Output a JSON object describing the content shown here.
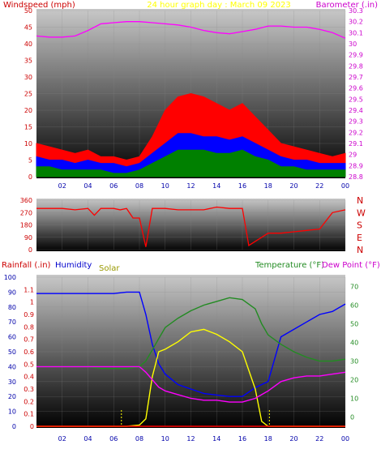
{
  "title": "24 hour graph day : March 09 2023",
  "colors": {
    "wind_speed": "#ff0000",
    "wind_gust": "#ff0000",
    "wind_avg": "#0000ff",
    "wind_low": "#008000",
    "barometer": "#ff00ff",
    "direction": "#ff0000",
    "humidity": "#0000ff",
    "solar": "#ffff00",
    "temperature": "#228b22",
    "dewpoint": "#ff00ff",
    "rain": "#ff0000",
    "title": "#ffff00",
    "axis_left": "#cc0000",
    "axis_right": "#cc00cc"
  },
  "x_ticks": [
    "02",
    "04",
    "06",
    "08",
    "10",
    "12",
    "14",
    "16",
    "18",
    "20",
    "22",
    "00"
  ],
  "chart_data": [
    {
      "type": "area",
      "name": "wind-barometer",
      "left_label": "Windspeed (mph)",
      "right_label": "Barometer (.in)",
      "y_left_ticks": [
        "0",
        "5",
        "10",
        "15",
        "20",
        "25",
        "30",
        "35",
        "40",
        "45",
        "50"
      ],
      "y_right_ticks": [
        "28.8",
        "28.9",
        "29",
        "29.1",
        "29.2",
        "29.3",
        "29.4",
        "29.5",
        "29.6",
        "29.7",
        "29.8",
        "29.9",
        "30",
        "30.1",
        "30.2",
        "30.3"
      ],
      "ylim_left": [
        0,
        50
      ],
      "ylim_right": [
        28.8,
        30.3
      ],
      "x_hours": [
        0,
        1,
        2,
        3,
        4,
        5,
        6,
        7,
        8,
        9,
        10,
        11,
        12,
        13,
        14,
        15,
        16,
        17,
        18,
        19,
        20,
        21,
        22,
        23,
        24
      ],
      "series": [
        {
          "key": "gust",
          "values": [
            10,
            9,
            8,
            7,
            8,
            6,
            6,
            5,
            6,
            12,
            20,
            24,
            25,
            24,
            22,
            20,
            22,
            18,
            14,
            10,
            9,
            8,
            7,
            6,
            7
          ]
        },
        {
          "key": "avg",
          "values": [
            6,
            5,
            5,
            4,
            5,
            4,
            4,
            3,
            4,
            7,
            10,
            13,
            13,
            12,
            12,
            11,
            12,
            10,
            8,
            6,
            5,
            5,
            4,
            4,
            4
          ]
        },
        {
          "key": "low",
          "values": [
            3,
            3,
            2,
            2,
            2,
            2,
            1,
            1,
            2,
            4,
            6,
            8,
            8,
            8,
            7,
            7,
            8,
            6,
            5,
            3,
            3,
            2,
            2,
            2,
            2
          ]
        },
        {
          "key": "barometer",
          "values": [
            30.07,
            30.06,
            30.06,
            30.07,
            30.12,
            30.18,
            30.19,
            30.2,
            30.2,
            30.19,
            30.18,
            30.17,
            30.15,
            30.12,
            30.1,
            30.09,
            30.11,
            30.13,
            30.16,
            30.16,
            30.15,
            30.15,
            30.13,
            30.1,
            30.05
          ]
        }
      ]
    },
    {
      "type": "line",
      "name": "wind-direction",
      "y_left_ticks": [
        "0",
        "90",
        "180",
        "270",
        "360"
      ],
      "y_right_ticks": [
        "N",
        "E",
        "S",
        "W",
        "N"
      ],
      "ylim": [
        0,
        360
      ],
      "x_hours": [
        0,
        2,
        3,
        4,
        4.5,
        5,
        6,
        6.5,
        7,
        7.5,
        8,
        8.5,
        9,
        10,
        11,
        12,
        13,
        14,
        15,
        16,
        16.5,
        18,
        19,
        20,
        21,
        22,
        23,
        24
      ],
      "values": [
        300,
        300,
        290,
        300,
        250,
        300,
        300,
        290,
        300,
        230,
        230,
        20,
        300,
        300,
        290,
        290,
        290,
        310,
        300,
        300,
        30,
        120,
        120,
        130,
        140,
        150,
        270,
        290
      ]
    },
    {
      "type": "line",
      "name": "weather",
      "left_label": "Rainfall (.in)",
      "humidity_label": "Humidity",
      "solar_label": "Solar",
      "right_label_temp": "Temperature (°F)",
      "right_label_dew": "Dew Point (°F)",
      "rain_ticks": [
        "0",
        "0.1",
        "0.2",
        "0.3",
        "0.4",
        "0.5",
        "0.6",
        "0.7",
        "0.8",
        "0.9",
        "1",
        "1.1"
      ],
      "humidity_ticks": [
        "0",
        "10",
        "20",
        "30",
        "40",
        "50",
        "60",
        "70",
        "80",
        "90",
        "100"
      ],
      "temp_ticks": [
        "0",
        "10",
        "20",
        "30",
        "40",
        "50",
        "60",
        "70"
      ],
      "rain_ylim": [
        0,
        1.2
      ],
      "humidity_ylim": [
        0,
        100
      ],
      "temp_ylim": [
        -5,
        75
      ],
      "x_hours": [
        0,
        1,
        2,
        3,
        4,
        5,
        6,
        7,
        8,
        8.5,
        9,
        9.5,
        10,
        11,
        12,
        13,
        14,
        15,
        16,
        17,
        17.5,
        18,
        19,
        20,
        21,
        22,
        23,
        24
      ],
      "series": [
        {
          "key": "humidity",
          "values": [
            89,
            89,
            89,
            89,
            89,
            89,
            89,
            90,
            90,
            75,
            55,
            42,
            35,
            28,
            25,
            22,
            21,
            20,
            20,
            26,
            28,
            30,
            60,
            65,
            70,
            75,
            77,
            82
          ]
        },
        {
          "key": "solar",
          "values": [
            0,
            0,
            0,
            0,
            0,
            0,
            0,
            0,
            5,
            30,
            200,
            300,
            310,
            340,
            380,
            390,
            370,
            340,
            300,
            150,
            20,
            0,
            0,
            0,
            0,
            0,
            0,
            0
          ]
        },
        {
          "key": "temperature",
          "values": [
            27,
            27,
            27,
            27,
            27,
            26,
            26,
            26,
            27,
            30,
            36,
            42,
            48,
            53,
            57,
            60,
            62,
            64,
            63,
            58,
            50,
            44,
            39,
            35,
            32,
            30,
            30,
            31
          ]
        },
        {
          "key": "dewpoint",
          "values": [
            27,
            27,
            27,
            27,
            27,
            27,
            27,
            27,
            27,
            24,
            20,
            16,
            14,
            12,
            10,
            9,
            9,
            8,
            8,
            10,
            12,
            14,
            19,
            21,
            22,
            22,
            23,
            24
          ]
        },
        {
          "key": "rain",
          "values": [
            0,
            0,
            0,
            0,
            0,
            0,
            0,
            0,
            0,
            0,
            0,
            0,
            0,
            0,
            0,
            0,
            0,
            0,
            0,
            0,
            0,
            0,
            0,
            0,
            0,
            0,
            0,
            0
          ]
        }
      ]
    }
  ]
}
